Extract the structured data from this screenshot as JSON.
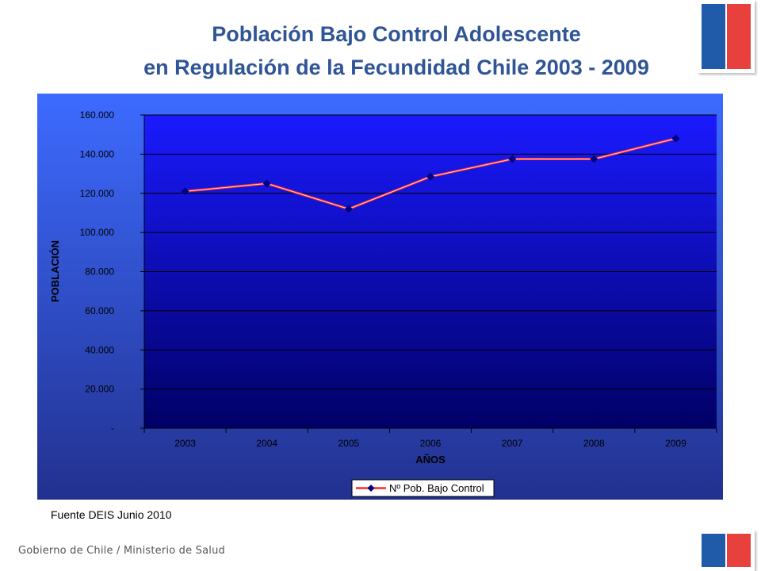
{
  "header": {
    "title_line_1": "Población Bajo Control Adolescente",
    "title_line_2": "en Regulación de la Fecundidad Chile 2003 - 2009"
  },
  "colors": {
    "title": "#2f5597",
    "flag_blue": "#1f5ba8",
    "flag_red": "#e8403c",
    "chart_bg_top": "#3d6bff",
    "chart_bg_bottom": "#22318f",
    "plot_top": "#1a1aff",
    "plot_bottom": "#000066",
    "series_line": "#ff2a2a",
    "marker": "#000080"
  },
  "chart_data": {
    "type": "line",
    "title": "",
    "xlabel": "AÑOS",
    "ylabel": "POBLACIÓN",
    "ylim": [
      0,
      160000
    ],
    "y_ticks": [
      0,
      20000,
      40000,
      60000,
      80000,
      100000,
      120000,
      140000,
      160000
    ],
    "y_tick_labels": [
      "-",
      "20.000",
      "40.000",
      "60.000",
      "80.000",
      "100.000",
      "120.000",
      "140.000",
      "160.000"
    ],
    "categories": [
      "2003",
      "2004",
      "2005",
      "2006",
      "2007",
      "2008",
      "2009"
    ],
    "series": [
      {
        "name": "Nº Pob. Bajo Control",
        "values": [
          121000,
          125000,
          112000,
          128500,
          137500,
          137500,
          148000
        ]
      }
    ],
    "grid": true,
    "legend_position": "bottom-center"
  },
  "footer": {
    "source": "Fuente DEIS   Junio 2010",
    "organization": "Gobierno de Chile / Ministerio de Salud"
  }
}
